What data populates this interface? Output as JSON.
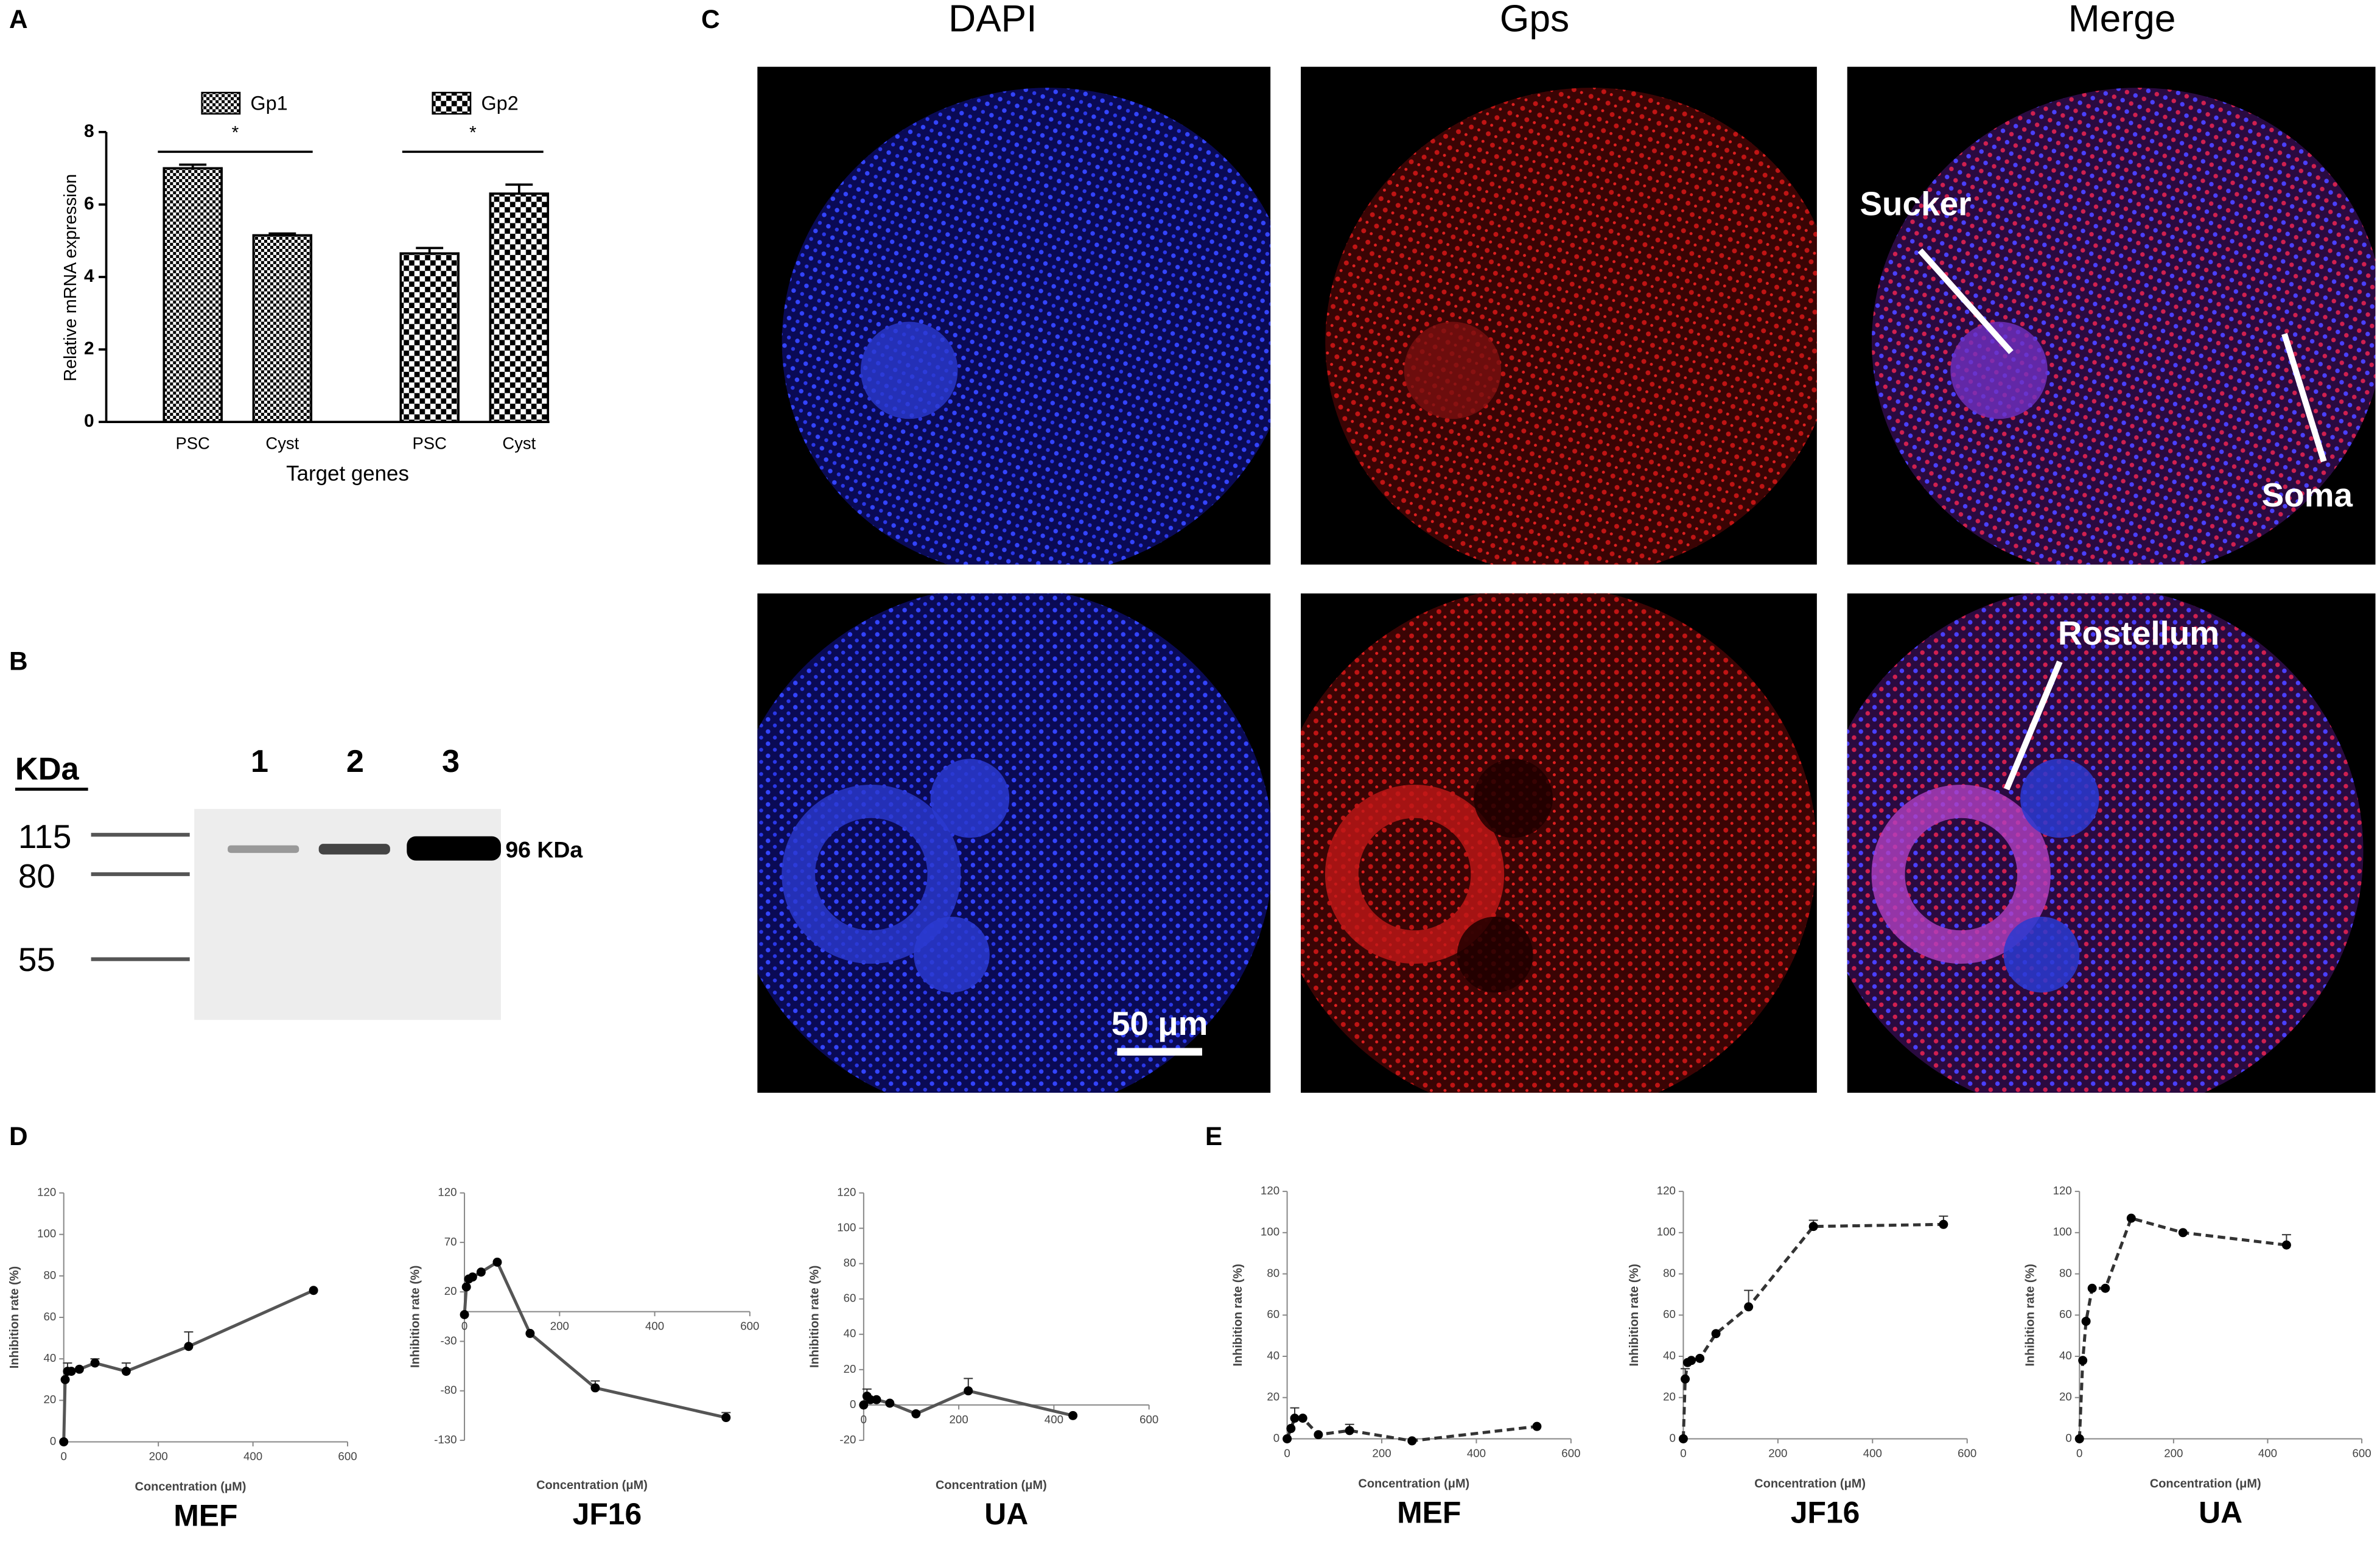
{
  "panel_labels": [
    "A",
    "B",
    "C",
    "D",
    "E"
  ],
  "western": {
    "unit": "KDa",
    "lanes": [
      "1",
      "2",
      "3"
    ],
    "markers": [
      "115",
      "80",
      "55"
    ],
    "band": "96 KDa"
  },
  "microscopy": {
    "columns": [
      "DAPI",
      "Gps",
      "Merge"
    ],
    "annotations": [
      "Sucker",
      "Soma",
      "Rostellum"
    ],
    "scale_bar": "50 μm"
  },
  "chart_data": [
    {
      "type": "bar",
      "xlabel": "Target genes",
      "ylabel": "Relative mRNA  expression",
      "categories": [
        "PSC",
        "Cyst",
        "PSC",
        "Cyst"
      ],
      "series": [
        {
          "name": "Gp1",
          "color": "#000000",
          "values": [
            7.0,
            5.15,
            null,
            null
          ],
          "errors": [
            0.1,
            0.05,
            null,
            null
          ]
        },
        {
          "name": "Gp2",
          "color": "#000000",
          "values": [
            null,
            null,
            4.65,
            6.3
          ],
          "errors": [
            null,
            null,
            0.15,
            0.25
          ]
        }
      ],
      "significance": [
        "*",
        "*"
      ],
      "ylim": [
        0,
        8
      ],
      "yticks": [
        0,
        2,
        4,
        6,
        8
      ]
    },
    {
      "type": "line",
      "title": "MEF",
      "xlabel": "Concentration (μM)",
      "ylabel": "Inhibition rate (%)",
      "line_style": "solid",
      "color": "#555555",
      "x": [
        0,
        3,
        8,
        16,
        33,
        66,
        132,
        264,
        528
      ],
      "values": [
        0,
        30,
        34,
        34,
        35,
        38,
        34,
        46,
        73
      ],
      "errors": [
        0,
        0,
        4,
        0,
        0,
        2,
        4,
        7,
        0
      ],
      "xlim": [
        0,
        600
      ],
      "xticks": [
        0,
        200,
        400,
        600
      ],
      "ylim": [
        0,
        120
      ],
      "yticks": [
        0,
        20,
        40,
        60,
        80,
        100,
        120
      ]
    },
    {
      "type": "line",
      "title": "JF16",
      "xlabel": "Concentration (μM)",
      "ylabel": "Inhibition rate (%)",
      "line_style": "solid",
      "color": "#555555",
      "x": [
        0,
        4,
        9,
        17,
        35,
        69,
        138,
        275,
        550
      ],
      "values": [
        -3,
        25,
        33,
        35,
        40,
        50,
        -22,
        -77,
        -107
      ],
      "errors": [
        0,
        0,
        0,
        0,
        0,
        0,
        0,
        7,
        5
      ],
      "xlim": [
        0,
        600
      ],
      "xticks": [
        0,
        200,
        400,
        600
      ],
      "ylim": [
        -130,
        120
      ],
      "yticks": [
        -130,
        -80,
        -30,
        20,
        70,
        120
      ]
    },
    {
      "type": "line",
      "title": "UA",
      "xlabel": "Concentration (μM)",
      "ylabel": "Inhibition rate (%)",
      "line_style": "solid",
      "color": "#555555",
      "x": [
        0,
        7,
        14,
        27,
        55,
        110,
        220,
        440
      ],
      "values": [
        0,
        5,
        3,
        3,
        1,
        -5,
        8,
        -6
      ],
      "errors": [
        0,
        4,
        0,
        0,
        0,
        0,
        7,
        0
      ],
      "xlim": [
        0,
        600
      ],
      "xticks": [
        0,
        200,
        400,
        600
      ],
      "ylim": [
        -20,
        120
      ],
      "yticks": [
        -20,
        0,
        20,
        40,
        60,
        80,
        100,
        120
      ]
    },
    {
      "type": "line",
      "title": "MEF",
      "xlabel": "Concentration (μM)",
      "ylabel": "Inhibition rate (%)",
      "line_style": "dashed",
      "color": "#333333",
      "x": [
        0,
        8,
        16,
        33,
        66,
        132,
        264,
        528
      ],
      "values": [
        0,
        5,
        10,
        10,
        2,
        4,
        -1,
        6
      ],
      "errors": [
        0,
        0,
        5,
        0,
        0,
        3,
        0,
        0
      ],
      "xlim": [
        0,
        600
      ],
      "xticks": [
        0,
        200,
        400,
        600
      ],
      "ylim": [
        0,
        120
      ],
      "yticks": [
        0,
        20,
        40,
        60,
        80,
        100,
        120
      ]
    },
    {
      "type": "line",
      "title": "JF16",
      "xlabel": "Concentration (μM)",
      "ylabel": "Inhibition rate (%)",
      "line_style": "dashed",
      "color": "#333333",
      "x": [
        0,
        4,
        9,
        17,
        35,
        69,
        138,
        275,
        550
      ],
      "values": [
        0,
        29,
        37,
        38,
        39,
        51,
        64,
        103,
        104
      ],
      "errors": [
        0,
        5,
        0,
        0,
        0,
        0,
        8,
        3,
        4
      ],
      "xlim": [
        0,
        600
      ],
      "xticks": [
        0,
        200,
        400,
        600
      ],
      "ylim": [
        0,
        120
      ],
      "yticks": [
        0,
        20,
        40,
        60,
        80,
        100,
        120
      ]
    },
    {
      "type": "line",
      "title": "UA",
      "xlabel": "Concentration (μM)",
      "ylabel": "Inhibition rate (%)",
      "line_style": "dashed",
      "color": "#333333",
      "x": [
        0,
        7,
        14,
        27,
        55,
        110,
        220,
        440
      ],
      "values": [
        0,
        38,
        57,
        73,
        73,
        107,
        100,
        94
      ],
      "errors": [
        0,
        0,
        0,
        0,
        0,
        0,
        0,
        5
      ],
      "xlim": [
        0,
        600
      ],
      "xticks": [
        0,
        200,
        400,
        600
      ],
      "ylim": [
        0,
        120
      ],
      "yticks": [
        0,
        20,
        40,
        60,
        80,
        100,
        120
      ]
    }
  ]
}
